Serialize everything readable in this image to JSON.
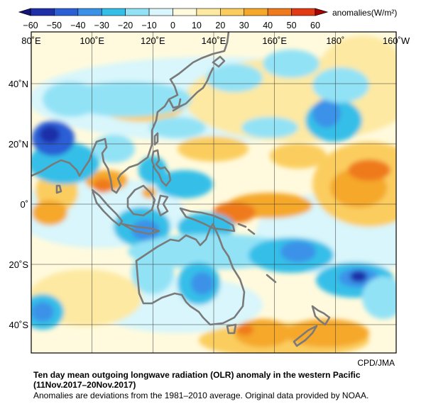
{
  "colorbar": {
    "label": "anomalies(W/m²)",
    "ticks": [
      "−60",
      "−50",
      "−40",
      "−30",
      "−20",
      "−10",
      "0",
      "10",
      "20",
      "30",
      "40",
      "50",
      "60"
    ],
    "colors": [
      "#1f2fa8",
      "#2a5fd6",
      "#3a92e8",
      "#34bfe8",
      "#92e2f6",
      "#d8f6fb",
      "#fffadd",
      "#fde9a2",
      "#fbcd5e",
      "#f5a82a",
      "#ef7a1c",
      "#e23b14"
    ]
  },
  "axes": {
    "lon_labels": [
      "80˚E",
      "100˚E",
      "120˚E",
      "140˚E",
      "160˚E",
      "180˚",
      "160˚W"
    ],
    "lat_labels": [
      "40˚N",
      "20˚N",
      "0˚",
      "20˚S",
      "40˚S"
    ]
  },
  "credit": "CPD/JMA",
  "title_line1": "Ten day mean outgoing longwave radiation (OLR) anomaly in the western Pacific",
  "title_line2": "(11Nov.2017–20Nov.2017)",
  "note": "Anomalies are deviations from the 1981–2010 average. Original data provided by NOAA.",
  "chart_data": {
    "type": "heatmap",
    "units": "W/m²",
    "range": [
      -60,
      60
    ],
    "interval": 10,
    "lon_range": [
      "80˚E",
      "160˚W"
    ],
    "lat_range": [
      "50˚N",
      "50˚S"
    ]
  }
}
